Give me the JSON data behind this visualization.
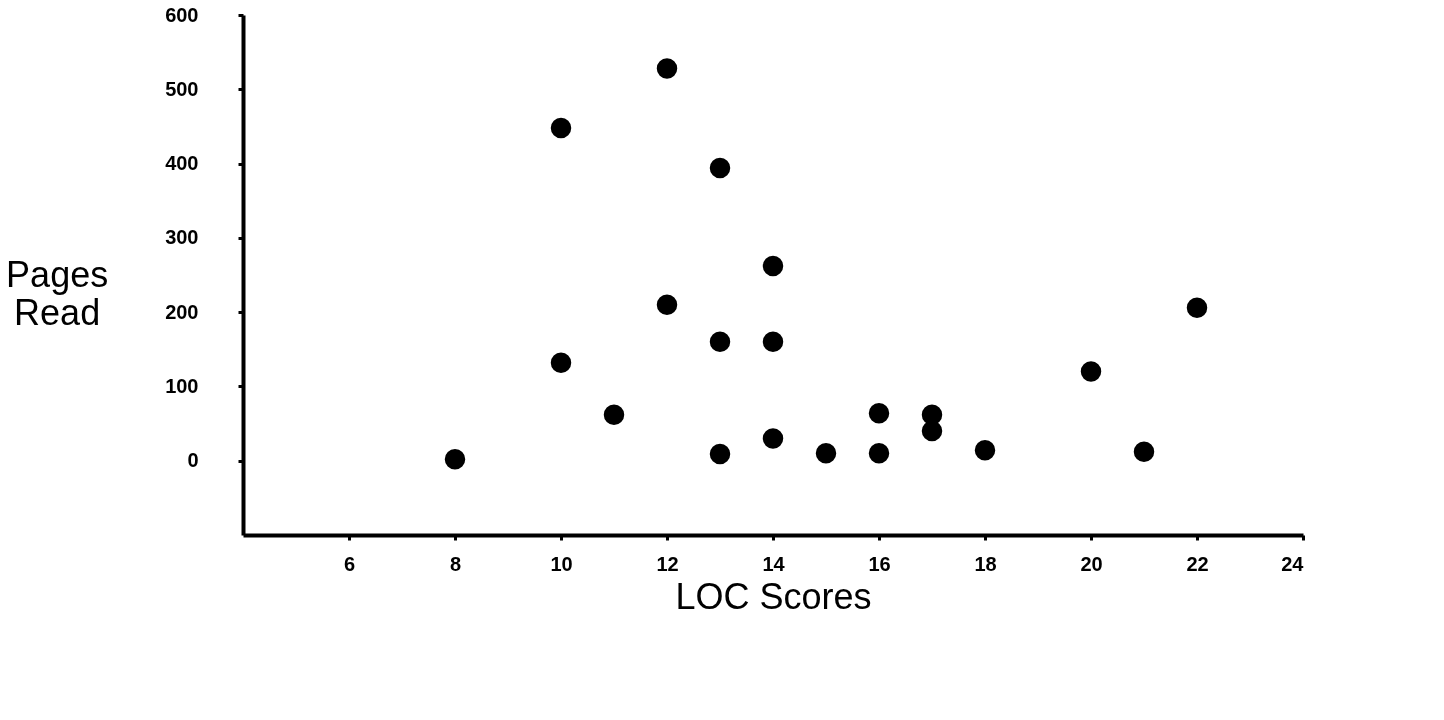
{
  "chart_data": {
    "type": "scatter",
    "xlabel": "LOC Scores",
    "ylabel": "Pages Read",
    "x": [
      8,
      10,
      10,
      11,
      12,
      12,
      13,
      13,
      13,
      14,
      14,
      14,
      15,
      16,
      16,
      17,
      17,
      18,
      20,
      21,
      22
    ],
    "series": [
      {
        "color": "#000000",
        "values": [
          2,
          448,
          132,
          62,
          528,
          210,
          394,
          160,
          9,
          262,
          160,
          30,
          10,
          64,
          10,
          62,
          40,
          14,
          120,
          12,
          206
        ]
      }
    ],
    "xlim": [
      4,
      24
    ],
    "xticks": [
      6,
      8,
      10,
      12,
      14,
      16,
      18,
      20,
      22,
      24
    ],
    "ylim": [
      -100,
      600
    ],
    "yticks": [
      0,
      100,
      200,
      300,
      400,
      500,
      600
    ],
    "grid": false,
    "marker": "circle"
  }
}
